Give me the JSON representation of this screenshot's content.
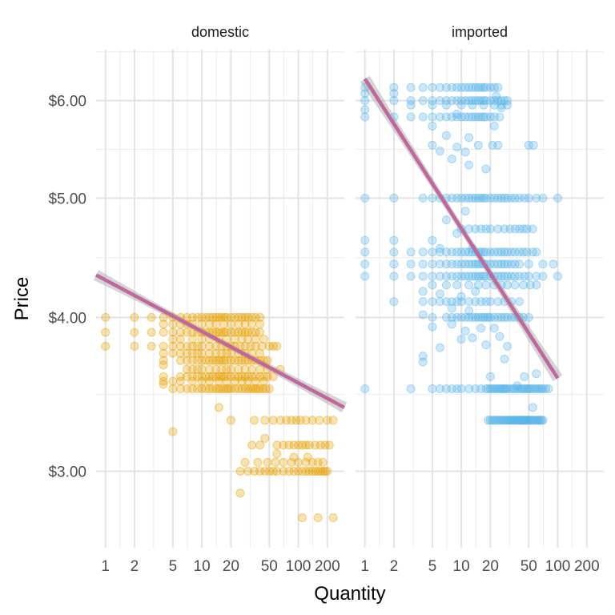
{
  "chart_data": {
    "type": "scatter",
    "x_label": "Quantity",
    "y_label": "Price",
    "x_scale": "log10",
    "y_scale": "log10",
    "x_range": [
      0.8,
      300
    ],
    "y_range": [
      2.6,
      6.6
    ],
    "x_ticks": [
      1,
      2,
      5,
      10,
      20,
      50,
      100,
      200
    ],
    "x_tick_labels": [
      "1",
      "2",
      "5",
      "10",
      "20",
      "50",
      "100",
      "200"
    ],
    "y_ticks": [
      3,
      4,
      5,
      6
    ],
    "y_tick_labels": [
      "$3.00",
      "$4.00",
      "$5.00",
      "$6.00"
    ],
    "grid": true,
    "theme": "minimal",
    "point_alpha": 0.3,
    "trend_color": "#c0679b",
    "band_color": "#b0b0b0",
    "panels": [
      {
        "name": "domestic",
        "color": "#e69f00",
        "trend": {
          "x": [
            0.8,
            300
          ],
          "y": [
            4.33,
            3.38
          ]
        },
        "clusters": [
          {
            "y": 4.0,
            "x": [
              1,
              2,
              3,
              4,
              5,
              6,
              7,
              8,
              9,
              10,
              11,
              12,
              13,
              14,
              15,
              16,
              17,
              18,
              20,
              22,
              24,
              26,
              28,
              30,
              33,
              36,
              40
            ]
          },
          {
            "y": 3.95,
            "x": [
              4,
              5,
              6,
              7,
              8,
              10,
              12,
              14,
              17,
              20,
              24,
              28,
              33,
              40
            ]
          },
          {
            "y": 3.89,
            "x": [
              1,
              2,
              3,
              4,
              5,
              6,
              7,
              8,
              9,
              10,
              11,
              12,
              13,
              14,
              15,
              16,
              17,
              18,
              20,
              22,
              24,
              26,
              28,
              30,
              33,
              36,
              40
            ]
          },
          {
            "y": 3.84,
            "x": [
              5,
              6,
              8,
              10,
              12,
              15,
              18,
              22,
              26,
              30,
              36,
              44
            ]
          },
          {
            "y": 3.79,
            "x": [
              1,
              2,
              3,
              4,
              5,
              6,
              7,
              8,
              9,
              10,
              12,
              14,
              16,
              18,
              20,
              22,
              25,
              28,
              32,
              36,
              42,
              50,
              60
            ]
          },
          {
            "y": 3.74,
            "x": [
              4,
              5,
              6,
              7,
              8,
              9,
              10,
              12,
              14,
              16,
              18,
              20,
              24,
              28,
              33,
              40
            ]
          },
          {
            "y": 3.69,
            "x": [
              4,
              6,
              7,
              8,
              9,
              10,
              11,
              12,
              13,
              14,
              15,
              16,
              17,
              18,
              20,
              22,
              24,
              26,
              28,
              30,
              33,
              36,
              40,
              44,
              48
            ]
          },
          {
            "y": 3.63,
            "x": [
              7,
              8,
              9,
              10,
              12,
              14,
              16,
              18,
              20,
              24,
              28,
              33,
              40,
              48
            ]
          },
          {
            "y": 3.58,
            "x": [
              4,
              6,
              7,
              8,
              9,
              10,
              11,
              12,
              13,
              14,
              15,
              16,
              17,
              18,
              20,
              22,
              24,
              26,
              28,
              30,
              33,
              36,
              40,
              44,
              48,
              55
            ]
          },
          {
            "y": 3.55,
            "x": [
              4,
              5,
              6,
              8,
              10,
              12,
              15,
              18,
              22,
              26,
              30,
              36,
              44
            ]
          },
          {
            "y": 3.5,
            "x": [
              5,
              6,
              7,
              8,
              9,
              10,
              11,
              12,
              13,
              14,
              15,
              16,
              17,
              18,
              19,
              20,
              22,
              24,
              26,
              28,
              30,
              32,
              34,
              36,
              38,
              40,
              43,
              46,
              50
            ]
          },
          {
            "y": 3.3,
            "x": [
              20,
              35,
              45,
              55,
              65,
              75,
              85,
              95,
              105,
              120,
              140,
              165,
              200,
              230
            ]
          },
          {
            "y": 3.15,
            "x": [
              33,
              40,
              60,
              70,
              80,
              90,
              100,
              110,
              120,
              130,
              150,
              170,
              190,
              210
            ]
          },
          {
            "y": 3.05,
            "x": [
              28,
              38,
              48,
              58,
              70,
              85,
              100,
              120,
              140,
              160,
              180
            ]
          },
          {
            "y": 3.0,
            "x": [
              25,
              30,
              35,
              40,
              45,
              50,
              55,
              60,
              70,
              80,
              90,
              100,
              110,
              120,
              130,
              140,
              150,
              160,
              170,
              180,
              190,
              200
            ]
          },
          {
            "y": 2.75,
            "x": [
              110,
              160,
              230
            ]
          }
        ],
        "extra_points": [
          {
            "x": 4,
            "y": 3.66
          },
          {
            "x": 4,
            "y": 3.53
          },
          {
            "x": 5,
            "y": 3.23
          },
          {
            "x": 15,
            "y": 3.38
          },
          {
            "x": 25,
            "y": 2.88
          },
          {
            "x": 45,
            "y": 3.19
          },
          {
            "x": 60,
            "y": 3.1
          },
          {
            "x": 90,
            "y": 3.08
          },
          {
            "x": 125,
            "y": 3.08
          },
          {
            "x": 65,
            "y": 3.63
          },
          {
            "x": 55,
            "y": 3.79
          }
        ]
      },
      {
        "name": "imported",
        "color": "#56b4e9",
        "trend": {
          "x": [
            1,
            100
          ],
          "y": [
            6.25,
            3.57
          ]
        },
        "clusters": [
          {
            "y": 6.15,
            "x": [
              1,
              2,
              3,
              4,
              5,
              6,
              7,
              8,
              9,
              10,
              11,
              12,
              13,
              14,
              15,
              16,
              17,
              18,
              20,
              22,
              24
            ]
          },
          {
            "y": 6.0,
            "x": [
              1,
              2,
              3,
              4,
              5,
              6,
              7,
              8,
              9,
              10,
              11,
              12,
              13,
              14,
              15,
              16,
              17,
              18,
              20,
              22,
              24,
              26,
              28,
              30
            ]
          },
          {
            "y": 5.95,
            "x": [
              3,
              5,
              7,
              10,
              13,
              17,
              22,
              26,
              30
            ]
          },
          {
            "y": 5.82,
            "x": [
              1,
              2,
              3,
              4,
              5,
              6,
              7,
              8,
              9,
              10,
              11,
              12,
              13,
              14,
              15,
              16,
              17,
              18,
              20,
              22,
              25
            ]
          },
          {
            "y": 5.0,
            "x": [
              1,
              2,
              4,
              5,
              6,
              7,
              8,
              9,
              10,
              11,
              12,
              13,
              14,
              15,
              16,
              17,
              18,
              20,
              22,
              24,
              26,
              28,
              30,
              33,
              36,
              40,
              45,
              50,
              60,
              70,
              100
            ]
          },
          {
            "y": 4.72,
            "x": [
              10,
              12,
              14,
              16,
              18,
              20,
              24,
              28,
              32,
              36,
              40,
              44,
              48,
              55
            ]
          },
          {
            "y": 4.52,
            "x": [
              1,
              2,
              3,
              4,
              5,
              6,
              7,
              8,
              9,
              10,
              11,
              12,
              13,
              14,
              15,
              16,
              17,
              18,
              20,
              22,
              24,
              26,
              28,
              30,
              33,
              36,
              40,
              44,
              48,
              55,
              60
            ]
          },
          {
            "y": 4.42,
            "x": [
              1,
              2,
              3,
              4,
              5,
              6,
              7,
              8,
              9,
              10,
              11,
              12,
              13,
              14,
              15,
              16,
              17,
              18,
              20,
              22,
              24,
              26,
              28,
              30,
              33,
              36,
              40,
              50,
              70,
              90
            ]
          },
          {
            "y": 4.32,
            "x": [
              1,
              2,
              3,
              4,
              5,
              6,
              7,
              8,
              9,
              10,
              11,
              12,
              13,
              14,
              15,
              16,
              17,
              18,
              20,
              22,
              24,
              26,
              28,
              30,
              33,
              36,
              40,
              45,
              50,
              60,
              70,
              100
            ]
          },
          {
            "y": 4.25,
            "x": [
              5,
              7,
              9,
              12,
              15,
              18,
              22,
              26,
              30,
              36,
              44,
              52,
              60
            ]
          },
          {
            "y": 4.12,
            "x": [
              2,
              4,
              5,
              6,
              7,
              8,
              9,
              10,
              12,
              14,
              16,
              18,
              20,
              24,
              28,
              33,
              40
            ]
          },
          {
            "y": 4.0,
            "x": [
              5,
              7,
              8,
              9,
              10,
              11,
              12,
              13,
              14,
              15,
              16,
              17,
              18,
              19,
              20,
              22,
              24,
              26,
              28,
              30,
              33,
              36,
              40,
              44,
              50
            ]
          },
          {
            "y": 3.5,
            "x": [
              1,
              3,
              5,
              6,
              7,
              8,
              9,
              10,
              12,
              14,
              16,
              18,
              19,
              20,
              21,
              22,
              23,
              24,
              25,
              26,
              27,
              28,
              29,
              30,
              32,
              34,
              36,
              38,
              40,
              42,
              44,
              46,
              48,
              50,
              52,
              55,
              58,
              61,
              64,
              67,
              70,
              75,
              80
            ]
          },
          {
            "y": 3.3,
            "x": [
              19,
              20,
              21,
              22,
              23,
              24,
              25,
              26,
              27,
              28,
              29,
              30,
              31,
              32,
              33,
              34,
              35,
              36,
              37,
              38,
              39,
              40,
              41,
              42,
              43,
              44,
              45,
              46,
              47,
              48,
              49,
              50,
              52,
              54,
              56,
              58,
              60,
              62,
              64,
              66,
              68,
              70
            ]
          }
        ],
        "extra_points": [
          {
            "x": 1,
            "y": 6.08
          },
          {
            "x": 2,
            "y": 6.08
          },
          {
            "x": 1,
            "y": 5.9
          },
          {
            "x": 5,
            "y": 5.72
          },
          {
            "x": 5,
            "y": 5.52
          },
          {
            "x": 6,
            "y": 5.46
          },
          {
            "x": 8,
            "y": 5.38
          },
          {
            "x": 9,
            "y": 5.5
          },
          {
            "x": 11,
            "y": 5.45
          },
          {
            "x": 12,
            "y": 5.32
          },
          {
            "x": 15,
            "y": 5.52
          },
          {
            "x": 18,
            "y": 5.28
          },
          {
            "x": 21,
            "y": 5.52
          },
          {
            "x": 24,
            "y": 5.52
          },
          {
            "x": 50,
            "y": 5.52
          },
          {
            "x": 56,
            "y": 5.52
          },
          {
            "x": 12,
            "y": 5.6
          },
          {
            "x": 22,
            "y": 5.72
          },
          {
            "x": 7,
            "y": 5.62
          },
          {
            "x": 9,
            "y": 5.85
          },
          {
            "x": 1,
            "y": 4.62
          },
          {
            "x": 2,
            "y": 4.62
          },
          {
            "x": 5,
            "y": 4.62
          },
          {
            "x": 7,
            "y": 4.8
          },
          {
            "x": 9,
            "y": 4.68
          },
          {
            "x": 11,
            "y": 4.88
          },
          {
            "x": 13,
            "y": 4.55
          },
          {
            "x": 6,
            "y": 4.55
          },
          {
            "x": 4,
            "y": 4.2
          },
          {
            "x": 6,
            "y": 4.18
          },
          {
            "x": 8,
            "y": 4.07
          },
          {
            "x": 10,
            "y": 4.16
          },
          {
            "x": 12,
            "y": 4.05
          },
          {
            "x": 14,
            "y": 4.2
          },
          {
            "x": 4,
            "y": 4.02
          },
          {
            "x": 5,
            "y": 3.93
          },
          {
            "x": 8,
            "y": 3.95
          },
          {
            "x": 11,
            "y": 3.9
          },
          {
            "x": 13,
            "y": 3.85
          },
          {
            "x": 16,
            "y": 3.92
          },
          {
            "x": 18,
            "y": 3.8
          },
          {
            "x": 25,
            "y": 3.86
          },
          {
            "x": 30,
            "y": 3.79
          },
          {
            "x": 4,
            "y": 3.72
          },
          {
            "x": 4,
            "y": 3.68
          },
          {
            "x": 6,
            "y": 3.78
          },
          {
            "x": 10,
            "y": 3.84
          },
          {
            "x": 22,
            "y": 3.92
          },
          {
            "x": 28,
            "y": 3.7
          },
          {
            "x": 45,
            "y": 3.58
          },
          {
            "x": 60,
            "y": 3.6
          },
          {
            "x": 55,
            "y": 3.38
          },
          {
            "x": 20,
            "y": 3.58
          },
          {
            "x": 38,
            "y": 3.52
          },
          {
            "x": 23,
            "y": 6.05
          },
          {
            "x": 26,
            "y": 5.92
          }
        ]
      }
    ]
  }
}
